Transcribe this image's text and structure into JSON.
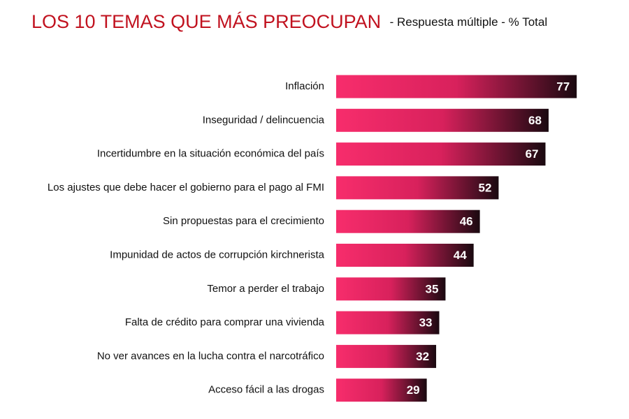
{
  "chart_data": {
    "type": "hbar",
    "title": "LOS 10 TEMAS QUE MÁS PREOCUPAN",
    "subtitle": "- Respuesta múltiple - % Total",
    "categories": [
      "Inflación",
      "Inseguridad / delincuencia",
      "Incertidumbre en la situación económica del país",
      "Los ajustes que debe hacer el gobierno para el pago al FMI",
      "Sin propuestas para el crecimiento",
      "Impunidad de actos de corrupción kirchnerista",
      "Temor a perder el trabajo",
      "Falta de crédito para comprar una vivienda",
      "No ver avances en la lucha contra el narcotráfico",
      "Acceso fácil a las drogas"
    ],
    "values": [
      77,
      68,
      67,
      52,
      46,
      44,
      35,
      33,
      32,
      29
    ],
    "colors": [
      "#f72d6c",
      "#d8215c",
      "#1a0910"
    ],
    "title_color": "#c1121f"
  }
}
